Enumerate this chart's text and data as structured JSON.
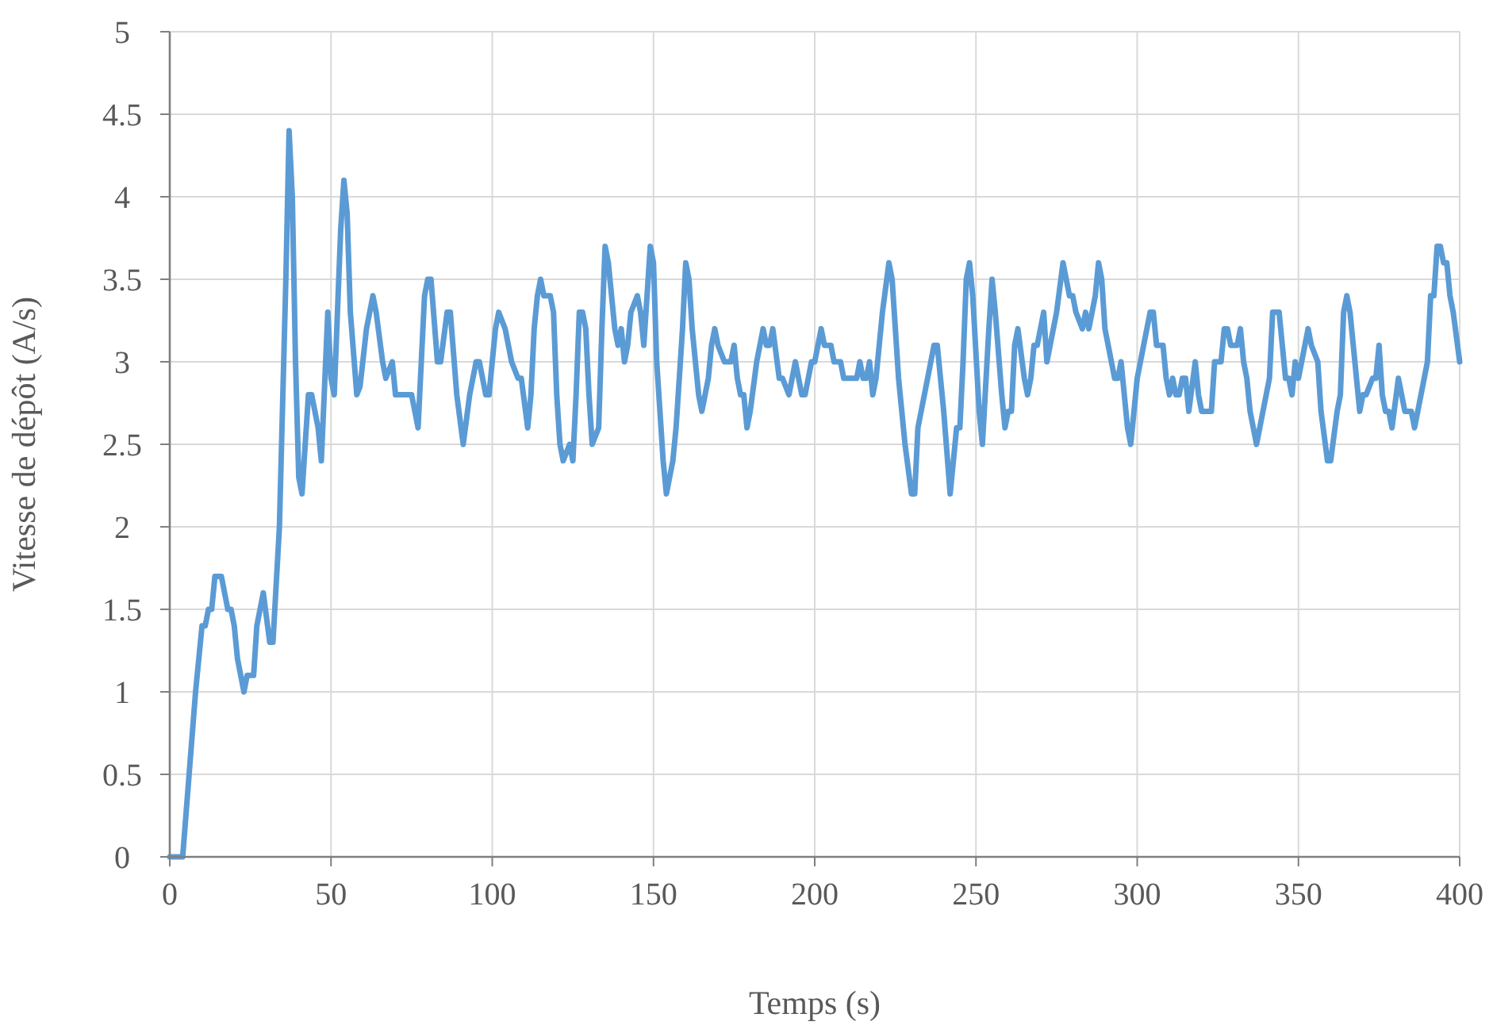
{
  "chart_data": {
    "type": "line",
    "xlabel": "Temps (s)",
    "ylabel": "Vitesse de dépôt (A/s)",
    "xlim": [
      0,
      400
    ],
    "ylim": [
      0,
      5
    ],
    "xticks": [
      0,
      50,
      100,
      150,
      200,
      250,
      300,
      350,
      400
    ],
    "yticks": [
      0,
      0.5,
      1,
      1.5,
      2,
      2.5,
      3,
      3.5,
      4,
      4.5,
      5
    ],
    "grid": true,
    "marker": "none",
    "line_style": "solid",
    "series": [
      {
        "color": "#5b9bd5",
        "x": [
          0,
          4,
          6,
          8,
          10,
          11,
          12,
          13,
          14,
          16,
          18,
          19,
          20,
          21,
          23,
          24,
          26,
          27,
          29,
          31,
          32,
          34,
          36,
          37,
          38,
          39,
          40,
          41,
          43,
          44,
          46,
          47,
          49,
          50,
          51,
          53,
          54,
          55,
          56,
          58,
          59,
          61,
          63,
          64,
          66,
          67,
          69,
          70,
          73,
          75,
          77,
          79,
          80,
          81,
          83,
          84,
          86,
          87,
          89,
          91,
          93,
          95,
          96,
          98,
          99,
          101,
          102,
          104,
          106,
          108,
          109,
          111,
          112,
          113,
          114,
          115,
          116,
          118,
          119,
          120,
          121,
          122,
          124,
          125,
          126,
          127,
          128,
          129,
          130,
          131,
          133,
          134,
          135,
          136,
          138,
          139,
          140,
          141,
          142,
          143,
          145,
          146,
          147,
          149,
          150,
          151,
          153,
          154,
          155,
          156,
          157,
          159,
          160,
          161,
          162,
          164,
          165,
          167,
          168,
          169,
          170,
          172,
          173,
          174,
          175,
          176,
          177,
          178,
          179,
          180,
          182,
          184,
          185,
          186,
          187,
          189,
          190,
          192,
          194,
          196,
          197,
          199,
          200,
          202,
          203,
          205,
          206,
          208,
          209,
          211,
          213,
          214,
          215,
          216,
          217,
          218,
          219,
          221,
          223,
          224,
          226,
          228,
          230,
          231,
          232,
          233,
          235,
          237,
          238,
          240,
          242,
          243,
          244,
          245,
          246,
          247,
          248,
          249,
          251,
          252,
          254,
          255,
          256,
          258,
          259,
          260,
          261,
          262,
          263,
          265,
          266,
          267,
          268,
          269,
          270,
          271,
          272,
          274,
          275,
          277,
          279,
          280,
          281,
          283,
          284,
          285,
          287,
          288,
          289,
          290,
          292,
          293,
          294,
          295,
          296,
          297,
          298,
          300,
          302,
          304,
          305,
          306,
          308,
          309,
          310,
          311,
          312,
          313,
          314,
          315,
          316,
          318,
          319,
          320,
          322,
          323,
          324,
          326,
          327,
          328,
          329,
          331,
          332,
          333,
          334,
          335,
          337,
          339,
          341,
          342,
          344,
          346,
          347,
          348,
          349,
          350,
          352,
          353,
          354,
          356,
          357,
          359,
          360,
          362,
          363,
          364,
          365,
          366,
          368,
          369,
          370,
          371,
          373,
          374,
          375,
          376,
          377,
          378,
          379,
          381,
          382,
          383,
          385,
          386,
          388,
          390,
          391,
          392,
          393,
          394,
          395,
          396,
          397,
          398,
          400
        ],
        "values": [
          0,
          0,
          0.5,
          1,
          1.4,
          1.4,
          1.5,
          1.5,
          1.7,
          1.7,
          1.5,
          1.5,
          1.4,
          1.2,
          1.0,
          1.1,
          1.1,
          1.4,
          1.6,
          1.3,
          1.3,
          2.0,
          3.5,
          4.4,
          4.0,
          3.0,
          2.3,
          2.2,
          2.8,
          2.8,
          2.6,
          2.4,
          3.3,
          2.9,
          2.8,
          3.8,
          4.1,
          3.9,
          3.3,
          2.8,
          2.85,
          3.2,
          3.4,
          3.3,
          3.0,
          2.9,
          3.0,
          2.8,
          2.8,
          2.8,
          2.6,
          3.4,
          3.5,
          3.5,
          3.0,
          3.0,
          3.3,
          3.3,
          2.8,
          2.5,
          2.8,
          3.0,
          3.0,
          2.8,
          2.8,
          3.2,
          3.3,
          3.2,
          3.0,
          2.9,
          2.9,
          2.6,
          2.8,
          3.2,
          3.4,
          3.5,
          3.4,
          3.4,
          3.3,
          2.8,
          2.5,
          2.4,
          2.5,
          2.4,
          2.8,
          3.3,
          3.3,
          3.2,
          2.8,
          2.5,
          2.6,
          3.2,
          3.7,
          3.6,
          3.2,
          3.1,
          3.2,
          3.0,
          3.1,
          3.3,
          3.4,
          3.3,
          3.1,
          3.7,
          3.6,
          3.0,
          2.4,
          2.2,
          2.3,
          2.4,
          2.6,
          3.2,
          3.6,
          3.5,
          3.2,
          2.8,
          2.7,
          2.9,
          3.1,
          3.2,
          3.1,
          3.0,
          3.0,
          3.0,
          3.1,
          2.9,
          2.8,
          2.8,
          2.6,
          2.7,
          3.0,
          3.2,
          3.1,
          3.1,
          3.2,
          2.9,
          2.9,
          2.8,
          3.0,
          2.8,
          2.8,
          3.0,
          3.0,
          3.2,
          3.1,
          3.1,
          3.0,
          3.0,
          2.9,
          2.9,
          2.9,
          3.0,
          2.9,
          2.9,
          3.0,
          2.8,
          2.9,
          3.3,
          3.6,
          3.5,
          2.9,
          2.5,
          2.2,
          2.2,
          2.6,
          2.7,
          2.9,
          3.1,
          3.1,
          2.7,
          2.2,
          2.4,
          2.6,
          2.6,
          3.0,
          3.5,
          3.6,
          3.4,
          2.7,
          2.5,
          3.2,
          3.5,
          3.3,
          2.8,
          2.6,
          2.7,
          2.7,
          3.1,
          3.2,
          2.9,
          2.8,
          2.9,
          3.1,
          3.1,
          3.2,
          3.3,
          3.0,
          3.2,
          3.3,
          3.6,
          3.4,
          3.4,
          3.3,
          3.2,
          3.3,
          3.2,
          3.4,
          3.6,
          3.5,
          3.2,
          3.0,
          2.9,
          2.9,
          3.0,
          2.8,
          2.6,
          2.5,
          2.9,
          3.1,
          3.3,
          3.3,
          3.1,
          3.1,
          2.9,
          2.8,
          2.9,
          2.8,
          2.8,
          2.9,
          2.9,
          2.7,
          3.0,
          2.8,
          2.7,
          2.7,
          2.7,
          3.0,
          3.0,
          3.2,
          3.2,
          3.1,
          3.1,
          3.2,
          3.0,
          2.9,
          2.7,
          2.5,
          2.7,
          2.9,
          3.3,
          3.3,
          2.9,
          2.9,
          2.8,
          3.0,
          2.9,
          3.1,
          3.2,
          3.1,
          3.0,
          2.7,
          2.4,
          2.4,
          2.7,
          2.8,
          3.3,
          3.4,
          3.3,
          2.9,
          2.7,
          2.8,
          2.8,
          2.9,
          2.9,
          3.1,
          2.8,
          2.7,
          2.7,
          2.6,
          2.9,
          2.8,
          2.7,
          2.7,
          2.6,
          2.8,
          3.0,
          3.4,
          3.4,
          3.7,
          3.7,
          3.6,
          3.6,
          3.4,
          3.3,
          3.0
        ]
      }
    ]
  }
}
